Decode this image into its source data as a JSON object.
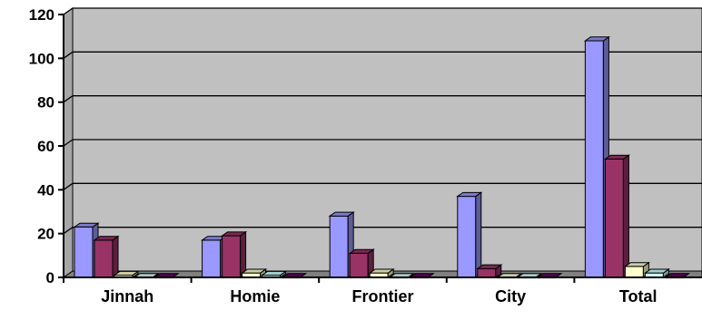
{
  "chart_data": {
    "type": "bar",
    "style": "3d-clustered-column",
    "categories": [
      "Jinnah",
      "Homie",
      "Frontier",
      "City",
      "Total"
    ],
    "series": [
      {
        "color": "#9999ff",
        "values": [
          23,
          17,
          28,
          37,
          108
        ]
      },
      {
        "color": "#993366",
        "values": [
          17,
          19,
          11,
          4,
          54
        ]
      },
      {
        "color": "#ffffcc",
        "values": [
          1,
          2,
          2,
          0,
          5
        ]
      },
      {
        "color": "#ccffff",
        "values": [
          0,
          1,
          0,
          0,
          2
        ]
      },
      {
        "color": "#660066",
        "values": [
          0,
          0,
          0,
          0,
          0
        ]
      }
    ],
    "ylim": [
      0,
      120
    ],
    "yticks": [
      "0",
      "20",
      "40",
      "60",
      "80",
      "100",
      "120"
    ],
    "grid": true,
    "plot_background": "#c0c0c0",
    "floor_color": "#808080"
  }
}
